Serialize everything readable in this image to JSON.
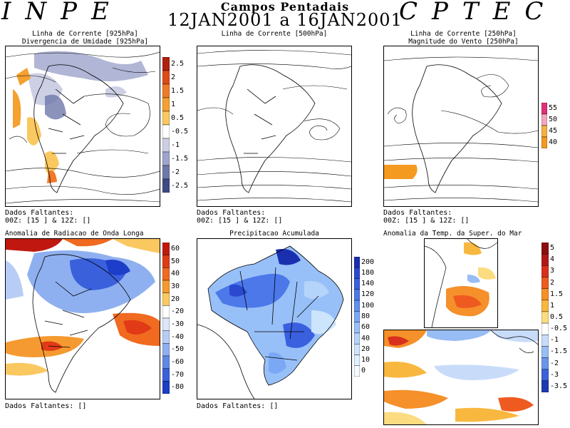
{
  "header": {
    "left_logo": "INPE",
    "right_logo": "CPTEC",
    "title": "Campos Pentadais",
    "dates": "12JAN2001 a 16JAN2001"
  },
  "panels": {
    "p1": {
      "title_line1": "Linha de Corrente [925hPa]",
      "title_line2": "Divergencia de Umidade [925hPa]",
      "missing_label": "Dados Faltantes:",
      "missing_detail": "00Z: [15 ] & 12Z: []",
      "colorbar": {
        "labels": [
          "2.5",
          "2",
          "1.5",
          "1",
          "0.5",
          "-0.5",
          "-1",
          "-1.5",
          "-2",
          "-2.5"
        ],
        "colors": [
          "#b02010",
          "#e04a18",
          "#f07a28",
          "#f5a030",
          "#fac860",
          "#ffffff",
          "#cdd0e4",
          "#9ea4cc",
          "#6e78aa",
          "#3e4a84"
        ]
      }
    },
    "p2": {
      "title_line1": "Linha de Corrente [500hPa]",
      "missing_label": "Dados Faltantes:",
      "missing_detail": "00Z: [15 ] & 12Z: []"
    },
    "p3": {
      "title_line1": "Linha de Corrente [250hPa]",
      "title_line2": "Magnitude do Vento [250hPa]",
      "missing_label": "Dados Faltantes:",
      "missing_detail": "00Z: [15 ] & 12Z: []",
      "colorbar": {
        "labels": [
          "55",
          "50",
          "45",
          "40"
        ],
        "colors": [
          "#e0307a",
          "#f2a8c0",
          "#f6b040",
          "#f59a20"
        ]
      }
    },
    "p4": {
      "title_line1": "Anomalia de Radiacao de Onda Longa",
      "missing_label": "Dados Faltantes: []",
      "colorbar": {
        "labels": [
          "60",
          "50",
          "40",
          "30",
          "20",
          "-20",
          "-30",
          "-40",
          "-50",
          "-60",
          "-70",
          "-80"
        ],
        "colors": [
          "#c01810",
          "#e03a16",
          "#f06a20",
          "#f59a30",
          "#fac860",
          "#ffffff",
          "#dde6fa",
          "#b8cdf6",
          "#8fb0f0",
          "#6088e6",
          "#3a60dc",
          "#1c3ec8"
        ]
      }
    },
    "p5": {
      "title_line1": "Precipitacao Acumulada",
      "missing_label": "Dados Faltantes: []",
      "colorbar": {
        "labels": [
          "200",
          "180",
          "140",
          "120",
          "100",
          "80",
          "60",
          "40",
          "20",
          "10",
          "0"
        ],
        "colors": [
          "#1a2fb0",
          "#2a48d0",
          "#3a60e0",
          "#4c78ea",
          "#6090f0",
          "#7aa8f4",
          "#98c0f8",
          "#b4d4fa",
          "#cce4fc",
          "#e0f0fe",
          "#f4faff"
        ]
      }
    },
    "p6": {
      "title_line1": "Anomalia da Temp. da Super. do Mar",
      "colorbar": {
        "labels": [
          "5",
          "4",
          "3",
          "2",
          "1.5",
          "1",
          "0.5",
          "-0.5",
          "-1",
          "-1.5",
          "-2",
          "-3",
          "-3.5"
        ],
        "colors": [
          "#8a1010",
          "#b01818",
          "#d8301c",
          "#ee5a20",
          "#f5902a",
          "#f8b840",
          "#fcdc80",
          "#ffffff",
          "#c8dcfa",
          "#98bcf4",
          "#6a96ea",
          "#3a62d8",
          "#1e3ab0"
        ]
      }
    }
  }
}
